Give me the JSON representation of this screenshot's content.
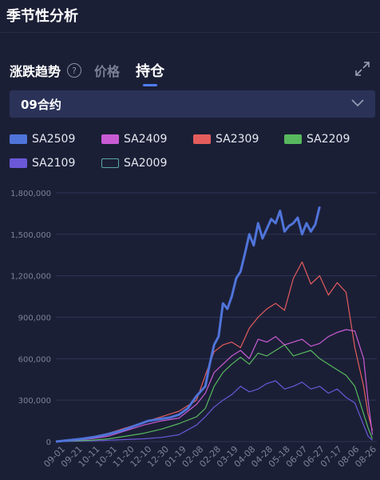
{
  "header": {
    "title": "季节性分析"
  },
  "tabs": {
    "trend_label": "涨跌趋势",
    "help_icon": "question-circle-icon",
    "items": [
      {
        "label": "价格",
        "active": false
      },
      {
        "label": "持仓",
        "active": true
      }
    ],
    "expand_icon": "expand-arrows-icon"
  },
  "contract_select": {
    "value": "09合约",
    "icon": "chevron-down-icon"
  },
  "colors": {
    "background": "#1b1f36",
    "accent": "#4f7df3",
    "grid": "#2e3352"
  },
  "chart_data": {
    "type": "line",
    "yticks": [
      "0",
      "300,000",
      "600,000",
      "900,000",
      "1,200,000",
      "1,500,000",
      "1,800,000"
    ],
    "ylim": [
      0,
      1800000
    ],
    "xticks": [
      "09-01",
      "09-21",
      "10-11",
      "10-31",
      "11-20",
      "12-10",
      "12-30",
      "01-19",
      "02-08",
      "02-28",
      "03-19",
      "04-08",
      "04-28",
      "05-18",
      "06-07",
      "06-27",
      "07-17",
      "08-06",
      "08-26"
    ],
    "grid": "horizontal",
    "legend_position": "top",
    "series": [
      {
        "name": "SA2509",
        "color": "#4f74d9",
        "outline": false,
        "x": [
          0,
          15,
          30,
          45,
          60,
          75,
          90,
          105,
          120,
          130,
          140,
          150,
          160,
          170,
          175,
          180,
          185,
          190,
          195,
          200,
          205,
          210,
          215,
          220,
          225,
          230,
          235,
          240,
          245,
          250,
          255,
          260,
          265,
          270,
          275,
          280,
          285,
          290,
          295,
          300
        ],
        "y": [
          0,
          10000,
          20000,
          35000,
          55000,
          80000,
          115000,
          150000,
          165000,
          175000,
          195000,
          240000,
          330000,
          400000,
          560000,
          700000,
          760000,
          1000000,
          960000,
          1050000,
          1180000,
          1230000,
          1360000,
          1500000,
          1420000,
          1580000,
          1470000,
          1540000,
          1610000,
          1580000,
          1670000,
          1520000,
          1560000,
          1580000,
          1620000,
          1500000,
          1580000,
          1520000,
          1570000,
          1700000
        ]
      },
      {
        "name": "SA2409",
        "color": "#c95cd4",
        "outline": false,
        "x": [
          0,
          20,
          40,
          60,
          80,
          100,
          120,
          140,
          160,
          170,
          180,
          190,
          200,
          210,
          220,
          230,
          240,
          250,
          260,
          270,
          280,
          290,
          300,
          310,
          320,
          330,
          340,
          350,
          355,
          360
        ],
        "y": [
          0,
          8000,
          20000,
          40000,
          80000,
          120000,
          150000,
          170000,
          270000,
          350000,
          500000,
          560000,
          620000,
          660000,
          600000,
          740000,
          720000,
          760000,
          700000,
          720000,
          740000,
          690000,
          710000,
          760000,
          790000,
          810000,
          800000,
          600000,
          300000,
          50000
        ]
      },
      {
        "name": "SA2309",
        "color": "#e45c5c",
        "outline": false,
        "x": [
          0,
          20,
          40,
          60,
          80,
          100,
          120,
          140,
          160,
          170,
          180,
          190,
          200,
          210,
          220,
          230,
          240,
          250,
          260,
          270,
          280,
          290,
          300,
          310,
          320,
          330,
          340,
          350,
          355,
          360
        ],
        "y": [
          0,
          15000,
          30000,
          60000,
          100000,
          140000,
          180000,
          220000,
          300000,
          480000,
          650000,
          700000,
          720000,
          680000,
          820000,
          900000,
          960000,
          1000000,
          950000,
          1180000,
          1300000,
          1140000,
          1200000,
          1060000,
          1150000,
          1080000,
          680000,
          400000,
          200000,
          80000
        ]
      },
      {
        "name": "SA2209",
        "color": "#57b85e",
        "outline": false,
        "x": [
          0,
          20,
          40,
          60,
          80,
          100,
          120,
          140,
          160,
          170,
          180,
          190,
          200,
          210,
          220,
          230,
          240,
          250,
          260,
          270,
          280,
          290,
          300,
          310,
          320,
          330,
          340,
          350,
          355,
          360
        ],
        "y": [
          0,
          5000,
          10000,
          20000,
          40000,
          60000,
          90000,
          130000,
          180000,
          240000,
          400000,
          500000,
          560000,
          610000,
          560000,
          640000,
          620000,
          660000,
          700000,
          620000,
          640000,
          660000,
          600000,
          560000,
          520000,
          480000,
          400000,
          200000,
          100000,
          20000
        ]
      },
      {
        "name": "SA2109",
        "color": "#6a58d8",
        "outline": false,
        "x": [
          0,
          20,
          40,
          60,
          80,
          100,
          120,
          140,
          160,
          170,
          180,
          190,
          200,
          210,
          220,
          230,
          240,
          250,
          260,
          270,
          280,
          290,
          300,
          310,
          320,
          330,
          340,
          350,
          355,
          360
        ],
        "y": [
          0,
          3000,
          6000,
          10000,
          15000,
          20000,
          30000,
          50000,
          120000,
          180000,
          250000,
          300000,
          340000,
          400000,
          360000,
          380000,
          420000,
          440000,
          380000,
          400000,
          430000,
          380000,
          400000,
          350000,
          380000,
          320000,
          280000,
          120000,
          40000,
          10000
        ]
      },
      {
        "name": "SA2009",
        "color": "#5aa6a0",
        "outline": true,
        "x": [],
        "y": []
      }
    ]
  }
}
